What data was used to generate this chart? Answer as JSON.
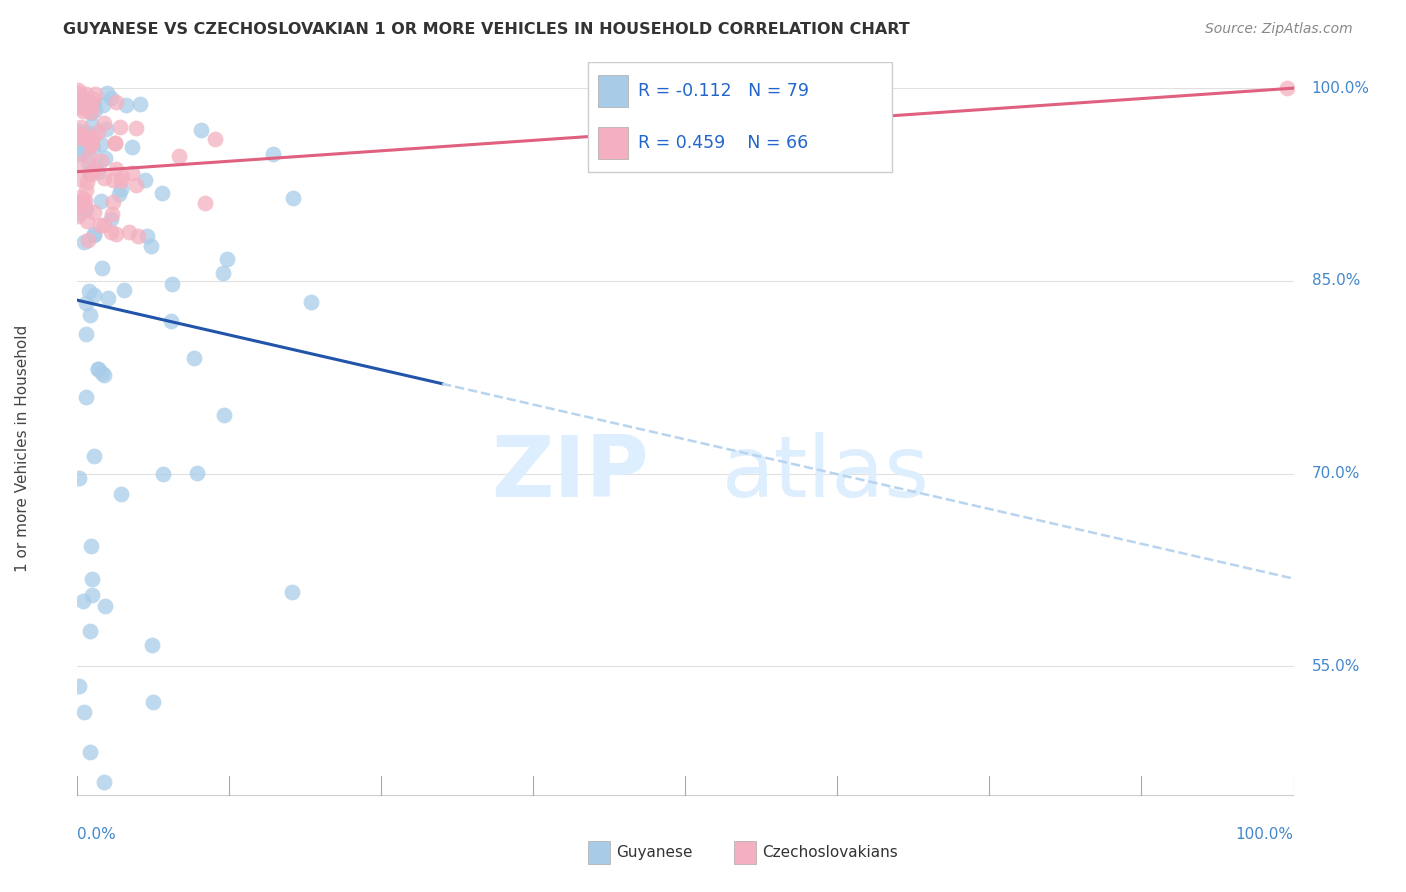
{
  "title": "GUYANESE VS CZECHOSLOVAKIAN 1 OR MORE VEHICLES IN HOUSEHOLD CORRELATION CHART",
  "source": "Source: ZipAtlas.com",
  "ylabel": "1 or more Vehicles in Household",
  "legend_guyanese": "Guyanese",
  "legend_czech": "Czechoslovakians",
  "R_guyanese": -0.112,
  "N_guyanese": 79,
  "R_czech": 0.459,
  "N_czech": 66,
  "color_guyanese_fill": "#a8cce8",
  "color_guyanese_edge": "#7aaad0",
  "color_czech_fill": "#f4b0c0",
  "color_czech_edge": "#e890a8",
  "color_guyanese_line": "#2255aa",
  "color_czech_line": "#e06080",
  "color_trendline_dashed": "#b8d4ee",
  "background_color": "#ffffff",
  "grid_color": "#e0e0e0",
  "watermark_color": "#ddeeff",
  "xlim": [
    0,
    100
  ],
  "ylim": [
    43,
    102
  ],
  "ytick_positions": [
    100,
    85,
    70,
    55
  ],
  "ytick_labels": [
    "100.0%",
    "85.0%",
    "70.0%",
    "55.0%"
  ]
}
